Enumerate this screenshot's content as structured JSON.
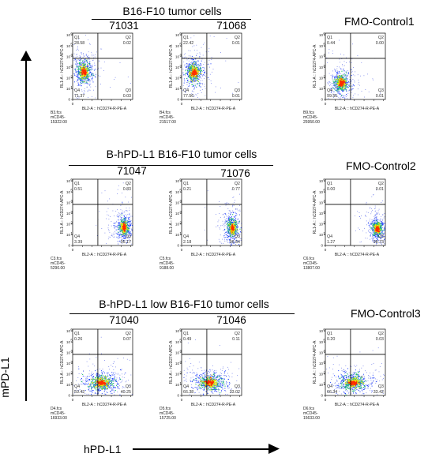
{
  "headers": {
    "group1": "B16-F10 tumor cells",
    "group2": "B-hPD-L1 B16-F10 tumor cells",
    "group3": "B-hPD-L1 low B16-F10 tumor cells"
  },
  "sample_ids": {
    "s1": "71031",
    "s2": "71068",
    "s3": "71047",
    "s4": "71076",
    "s5": "71040",
    "s6": "71046"
  },
  "fmo_titles": {
    "f1": "FMO-Control1",
    "f2": "FMO-Control2",
    "f3": "FMO-Control3"
  },
  "axes": {
    "y_label": "mPD-L1",
    "x_label": "hPD-L1"
  },
  "colors": {
    "density_high": "#ff2a00",
    "density_mid": "#f5e600",
    "density_mid2": "#22c46a",
    "density_low": "#1a3cff",
    "sparse": "#2b3fe0"
  },
  "chart_data": [
    {
      "type": "scatter",
      "panel": "71031",
      "ylabel": "RL1-A :: hCD274-APC-A",
      "xlabel": "BL2-A :: hCD274-R-PE-A",
      "quadrants": {
        "Q1": "28.58",
        "Q2": "0.02",
        "Q3": "0.03",
        "Q4": "71.37"
      },
      "file": "B3.fcs",
      "gate": "mCD45-",
      "events": "15322.00",
      "center": [
        0.18,
        0.42
      ],
      "spread": [
        0.07,
        0.09
      ]
    },
    {
      "type": "scatter",
      "panel": "71068",
      "ylabel": "RL1-A :: hCD274-APC-A",
      "xlabel": "BL2-A :: hCD274-R-PE-A",
      "quadrants": {
        "Q1": "22.42",
        "Q2": "0.01",
        "Q3": "0.01",
        "Q4": "77.56"
      },
      "file": "B4.fcs",
      "gate": "mCD45-",
      "events": "21517.00",
      "center": [
        0.2,
        0.41
      ],
      "spread": [
        0.07,
        0.09
      ]
    },
    {
      "type": "scatter",
      "panel": "FMO-Control1",
      "ylabel": "RL1-A :: hCD274-APC-A",
      "xlabel": "BL2-A :: hCD274-R-PE-A",
      "quadrants": {
        "Q1": "0.44",
        "Q2": "0.00",
        "Q3": "0.01",
        "Q4": "99.55"
      },
      "file": "B9.fcs",
      "gate": "mCD45-",
      "events": "25950.00",
      "center": [
        0.26,
        0.26
      ],
      "spread": [
        0.07,
        0.08
      ]
    },
    {
      "type": "scatter",
      "panel": "71047",
      "ylabel": "RL1-A :: hCD274-APC-A",
      "xlabel": "BL2-A :: hCD274-R-PE-A",
      "quadrants": {
        "Q1": "0.51",
        "Q2": "0.83",
        "Q3": "95.17",
        "Q4": "3.39"
      },
      "file": "C3.fcs",
      "gate": "mCD45-",
      "events": "5290.00",
      "center": [
        0.85,
        0.28
      ],
      "spread": [
        0.05,
        0.08
      ]
    },
    {
      "type": "scatter",
      "panel": "71076",
      "ylabel": "RL1-A :: hCD274-APC-A",
      "xlabel": "BL2-A :: hCD274-R-PE-A",
      "quadrants": {
        "Q1": "0.21",
        "Q2": "0.77",
        "Q3": "96.84",
        "Q4": "2.18"
      },
      "file": "C5.fcs",
      "gate": "mCD45-",
      "events": "9188.00",
      "center": [
        0.84,
        0.27
      ],
      "spread": [
        0.05,
        0.08
      ]
    },
    {
      "type": "scatter",
      "panel": "FMO-Control2",
      "ylabel": "RL1-A :: hCD274-APC-A",
      "xlabel": "BL2-A :: hCD274-R-PE-A",
      "quadrants": {
        "Q1": "0.00",
        "Q2": "0.01",
        "Q3": "98.73",
        "Q4": "1.27"
      },
      "file": "C6.fcs",
      "gate": "mCD45-",
      "events": "13807.00",
      "center": [
        0.86,
        0.26
      ],
      "spread": [
        0.05,
        0.07
      ]
    },
    {
      "type": "scatter",
      "panel": "71040",
      "ylabel": "RL1-A :: hCD274-APC-A",
      "xlabel": "BL2-A :: hCD274-R-PE-A",
      "quadrants": {
        "Q1": "0.26",
        "Q2": "0.07",
        "Q3": "40.25",
        "Q4": "59.42"
      },
      "file": "D4.fcs",
      "gate": "mCD45-",
      "events": "16933.00",
      "center": [
        0.48,
        0.2
      ],
      "spread": [
        0.13,
        0.07
      ]
    },
    {
      "type": "scatter",
      "panel": "71046",
      "ylabel": "RL1-A :: hCD274-APC-A",
      "xlabel": "BL2-A :: hCD274-R-PE-A",
      "quadrants": {
        "Q1": "0.49",
        "Q2": "0.11",
        "Q3": "33.02",
        "Q4": "66.38"
      },
      "file": "D5.fcs",
      "gate": "mCD45-",
      "events": "15725.00",
      "center": [
        0.46,
        0.2
      ],
      "spread": [
        0.13,
        0.07
      ]
    },
    {
      "type": "scatter",
      "panel": "FMO-Control3",
      "ylabel": "RL1-A :: hCD274-APC-A",
      "xlabel": "BL2-A :: hCD274-R-PE-A",
      "quadrants": {
        "Q1": "0.20",
        "Q2": "0.03",
        "Q3": "33.42",
        "Q4": "66.34"
      },
      "file": "D6.fcs",
      "gate": "mCD45-",
      "events": "15633.00",
      "center": [
        0.46,
        0.2
      ],
      "spread": [
        0.13,
        0.07
      ]
    }
  ]
}
